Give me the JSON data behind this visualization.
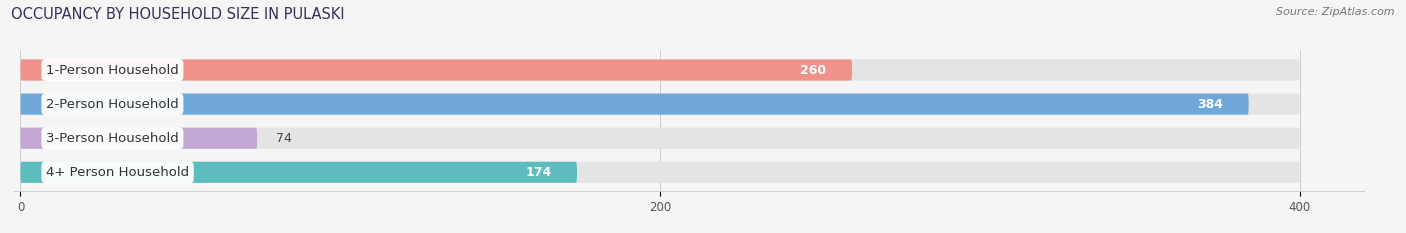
{
  "title": "OCCUPANCY BY HOUSEHOLD SIZE IN PULASKI",
  "source": "Source: ZipAtlas.com",
  "categories": [
    "1-Person Household",
    "2-Person Household",
    "3-Person Household",
    "4+ Person Household"
  ],
  "values": [
    260,
    384,
    74,
    174
  ],
  "bar_colors": [
    "#f0928a",
    "#6fa8d8",
    "#c4a8d4",
    "#5dbdbe"
  ],
  "background_color": "#f5f5f5",
  "bar_bg_color": "#e4e4e4",
  "xlim_data": [
    0,
    400
  ],
  "x_axis_max": 400,
  "xticks": [
    0,
    200,
    400
  ],
  "title_fontsize": 10.5,
  "label_fontsize": 9.5,
  "value_fontsize": 9,
  "bar_height": 0.62
}
